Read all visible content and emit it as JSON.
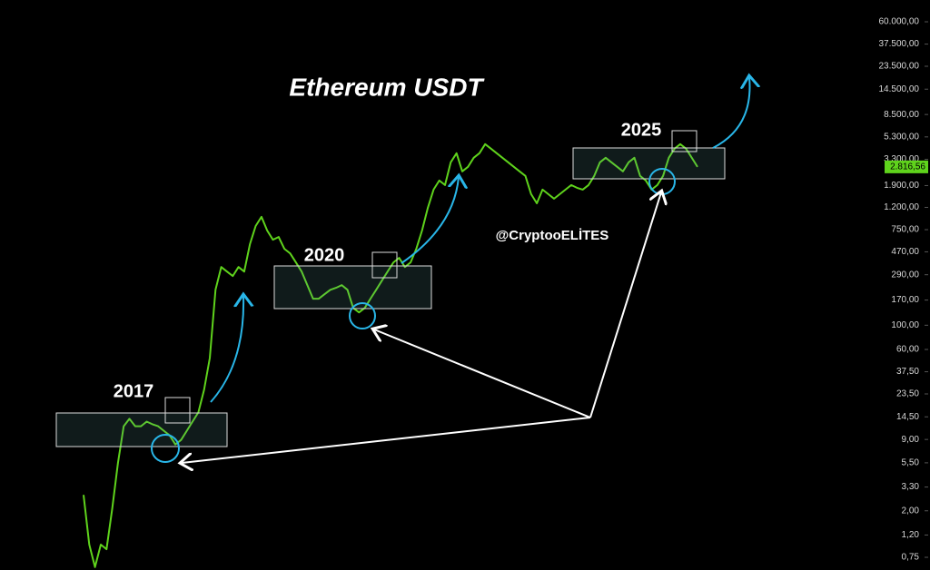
{
  "chart_data": {
    "type": "line",
    "title": "Ethereum USDT",
    "annotations": [
      "2017",
      "2020",
      "2025",
      "@CryptooELİTES"
    ],
    "log_scale": true,
    "grid": false,
    "series": [
      {
        "name": "ETH/USDT",
        "color": "#5fd31c",
        "values": [
          2.8,
          0.98,
          0.61,
          0.98,
          0.89,
          2.1,
          5.5,
          11.9,
          13.9,
          11.9,
          11.9,
          13.1,
          12.4,
          11.9,
          10.8,
          9.8,
          8.1,
          8.9,
          10.8,
          13.1,
          15.9,
          25.6,
          50,
          211,
          341,
          310,
          282,
          341,
          310,
          552,
          810,
          982,
          736,
          607,
          643,
          501,
          455,
          376,
          310,
          233,
          175,
          175,
          192,
          211,
          220,
          233,
          211,
          144,
          131,
          144,
          175,
          211,
          256,
          310,
          376,
          414,
          341,
          376,
          501,
          736,
          1189,
          1746,
          2113,
          1920,
          3105,
          3759,
          2561,
          2818,
          3413,
          3759,
          4553,
          4138,
          3759,
          3413,
          3105,
          2818,
          2561,
          2327,
          1585,
          1308,
          1746,
          1585,
          1440,
          1585,
          1746,
          1920,
          1813,
          1746,
          1920,
          2327,
          3105,
          3413,
          3105,
          2818,
          2561,
          3105,
          3413,
          2327,
          2113,
          1746,
          1920,
          2327,
          3413,
          4138,
          4553,
          4138,
          3413,
          2816.56
        ]
      }
    ],
    "last_price": {
      "value": 2816.56,
      "label": "2.816,56"
    },
    "last_price_color": "#5fd31c",
    "ylim": [
      0.574,
      95000
    ],
    "yticks": [
      {
        "value": 60000,
        "label": "60.000,00"
      },
      {
        "value": 37500,
        "label": "37.500,00"
      },
      {
        "value": 23500,
        "label": "23.500,00"
      },
      {
        "value": 14500,
        "label": "14.500,00"
      },
      {
        "value": 8500,
        "label": "8.500,00"
      },
      {
        "value": 5300,
        "label": "5.300,00"
      },
      {
        "value": 3300,
        "label": "3.300,00"
      },
      {
        "value": 1900,
        "label": "1.900,00"
      },
      {
        "value": 1200,
        "label": "1.200,00"
      },
      {
        "value": 750,
        "label": "750,00"
      },
      {
        "value": 470,
        "label": "470,00"
      },
      {
        "value": 290,
        "label": "290,00"
      },
      {
        "value": 170,
        "label": "170,00"
      },
      {
        "value": 100,
        "label": "100,00"
      },
      {
        "value": 60,
        "label": "60,00"
      },
      {
        "value": 37.5,
        "label": "37,50"
      },
      {
        "value": 23.5,
        "label": "23,50"
      },
      {
        "value": 14.5,
        "label": "14,50"
      },
      {
        "value": 9,
        "label": "9,00"
      },
      {
        "value": 5.5,
        "label": "5,50"
      },
      {
        "value": 3.3,
        "label": "3,30"
      },
      {
        "value": 2,
        "label": "2,00"
      },
      {
        "value": 1.2,
        "label": "1,20"
      },
      {
        "value": 0.75,
        "label": "0,75"
      }
    ]
  }
}
